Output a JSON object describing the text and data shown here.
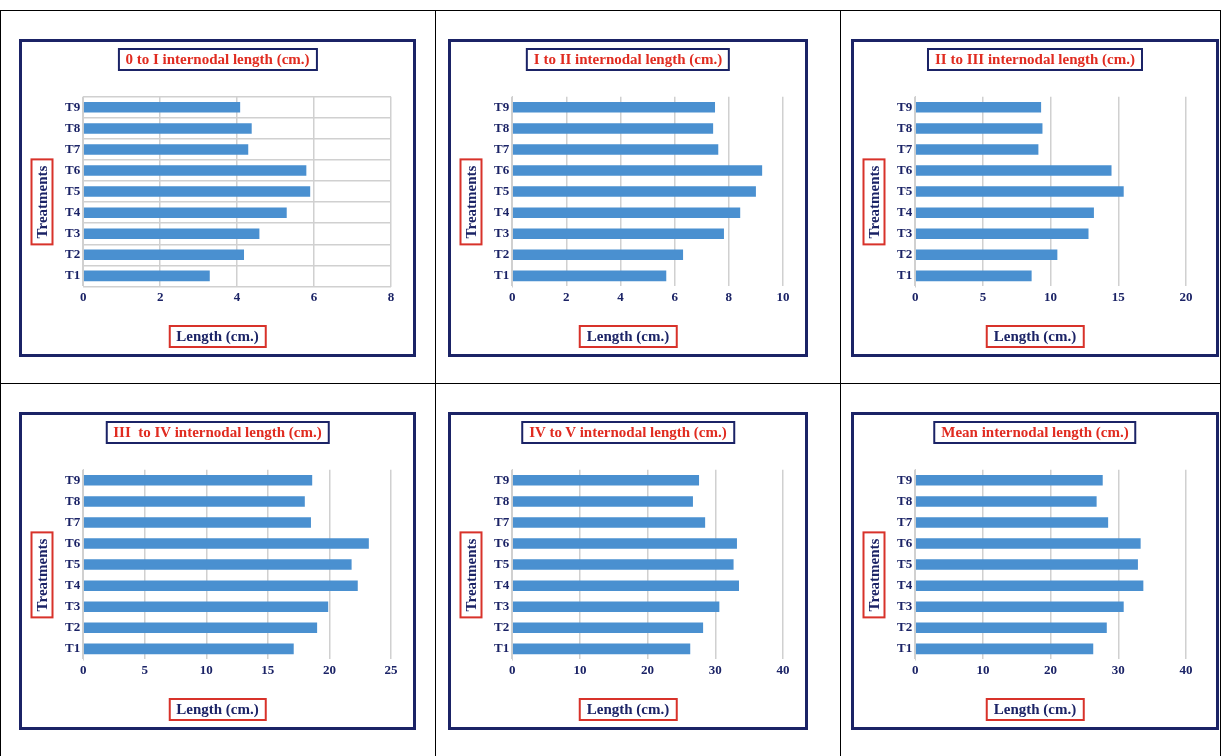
{
  "chart_data": [
    {
      "type": "bar",
      "orientation": "horizontal",
      "title": "0 to I internodal length (cm.)",
      "xlabel": "Length (cm.)",
      "ylabel": "Treatments",
      "categories": [
        "T9",
        "T8",
        "T7",
        "T6",
        "T5",
        "T4",
        "T3",
        "T2",
        "T1"
      ],
      "values": [
        4.08,
        4.38,
        4.29,
        5.8,
        5.9,
        5.29,
        4.58,
        4.18,
        3.29
      ],
      "color": "#4a90d0",
      "xlim": [
        0,
        8
      ],
      "xticks": [
        0,
        2,
        4,
        6,
        8
      ],
      "grid": true
    },
    {
      "type": "bar",
      "orientation": "horizontal",
      "title": "I to II internodal length (cm.)",
      "xlabel": "Length (cm.)",
      "ylabel": "Treatments",
      "categories": [
        "T9",
        "T8",
        "T7",
        "T6",
        "T5",
        "T4",
        "T3",
        "T2",
        "T1"
      ],
      "values": [
        7.49,
        7.42,
        7.61,
        9.23,
        9.0,
        8.42,
        7.82,
        6.31,
        5.69
      ],
      "color": "#4a90d0",
      "xlim": [
        0,
        10
      ],
      "xticks": [
        0,
        2,
        4,
        6,
        8,
        10
      ],
      "grid": "x"
    },
    {
      "type": "bar",
      "orientation": "horizontal",
      "title": "II to III internodal length (cm.)",
      "xlabel": "Length (cm.)",
      "ylabel": "Treatments",
      "categories": [
        "T9",
        "T8",
        "T7",
        "T6",
        "T5",
        "T4",
        "T3",
        "T2",
        "T1"
      ],
      "values": [
        9.3,
        9.4,
        9.1,
        14.5,
        15.4,
        13.2,
        12.8,
        10.5,
        8.6
      ],
      "color": "#4a90d0",
      "xlim": [
        0,
        20
      ],
      "xticks": [
        0,
        5,
        10,
        15,
        20
      ],
      "grid": "x"
    },
    {
      "type": "bar",
      "orientation": "horizontal",
      "title": "III  to IV internodal length (cm.)",
      "xlabel": "Length (cm.)",
      "ylabel": "Treatments",
      "categories": [
        "T9",
        "T8",
        "T7",
        "T6",
        "T5",
        "T4",
        "T3",
        "T2",
        "T1"
      ],
      "values": [
        18.6,
        18.0,
        18.5,
        23.2,
        21.8,
        22.3,
        19.9,
        19.0,
        17.1
      ],
      "color": "#4a90d0",
      "xlim": [
        0,
        25
      ],
      "xticks": [
        0,
        5,
        10,
        15,
        20,
        25
      ],
      "grid": "x"
    },
    {
      "type": "bar",
      "orientation": "horizontal",
      "title": "IV to V internodal length (cm.)",
      "xlabel": "Length (cm.)",
      "ylabel": "Treatments",
      "categories": [
        "T9",
        "T8",
        "T7",
        "T6",
        "T5",
        "T4",
        "T3",
        "T2",
        "T1"
      ],
      "values": [
        27.6,
        26.7,
        28.5,
        33.2,
        32.7,
        33.5,
        30.6,
        28.2,
        26.3
      ],
      "color": "#4a90d0",
      "xlim": [
        0,
        40
      ],
      "xticks": [
        0,
        10,
        20,
        30,
        40
      ],
      "grid": "x"
    },
    {
      "type": "bar",
      "orientation": "horizontal",
      "title": "Mean internodal length (cm.)",
      "xlabel": "Length (cm.)",
      "ylabel": "Treatments",
      "categories": [
        "T9",
        "T8",
        "T7",
        "T6",
        "T5",
        "T4",
        "T3",
        "T2",
        "T1"
      ],
      "values": [
        27.7,
        26.8,
        28.5,
        33.3,
        32.9,
        33.7,
        30.8,
        28.3,
        26.3
      ],
      "color": "#4a90d0",
      "xlim": [
        0,
        40
      ],
      "xticks": [
        0,
        10,
        20,
        30,
        40
      ],
      "grid": "x"
    }
  ]
}
